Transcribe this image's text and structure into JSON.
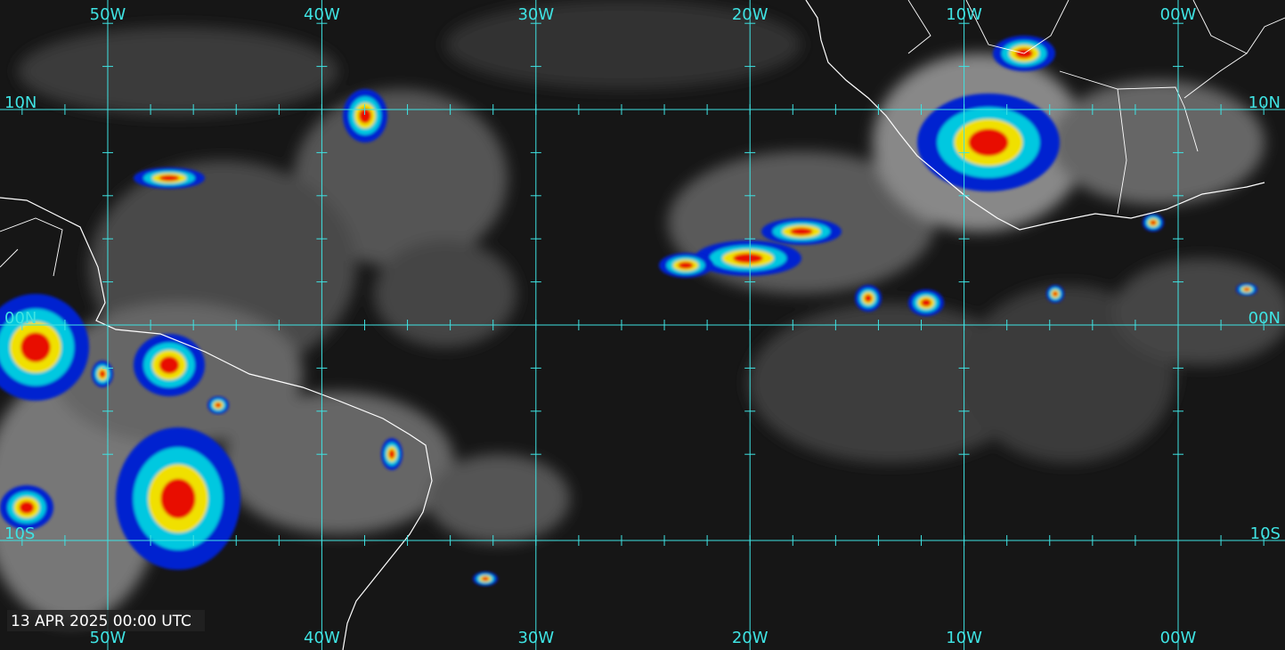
{
  "longitude_labels": [
    "50W",
    "40W",
    "30W",
    "20W",
    "10W",
    "00W"
  ],
  "latitude_labels": [
    "10N",
    "00N",
    "10S"
  ],
  "timestamp": "13 APR 2025 00:00 UTC"
}
